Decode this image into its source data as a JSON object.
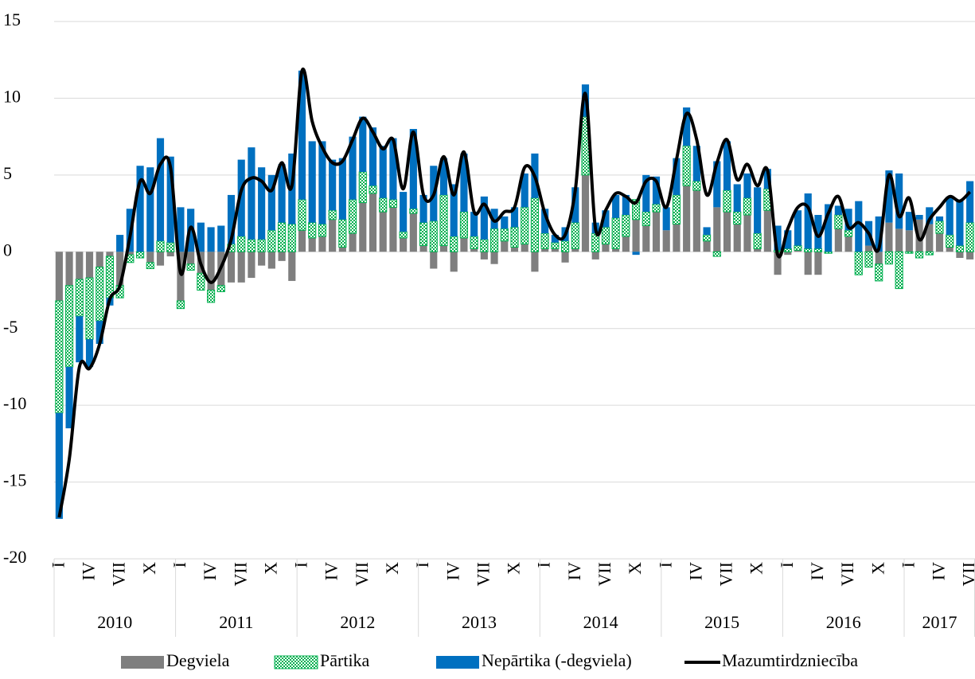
{
  "chart_data": {
    "type": "stacked_bar_line",
    "categories": [
      "I",
      null,
      null,
      "IV",
      null,
      null,
      "VII",
      null,
      null,
      "X",
      null,
      null,
      "I",
      null,
      null,
      "IV",
      null,
      null,
      "VII",
      null,
      null,
      "X",
      null,
      null,
      "I",
      null,
      null,
      "IV",
      null,
      null,
      "VII",
      null,
      null,
      "X",
      null,
      null,
      "I",
      null,
      null,
      "IV",
      null,
      null,
      "VII",
      null,
      null,
      "X",
      null,
      null,
      "I",
      null,
      null,
      "IV",
      null,
      null,
      "VII",
      null,
      null,
      "X",
      null,
      null,
      "I",
      null,
      null,
      "IV",
      null,
      null,
      "VII",
      null,
      null,
      "X",
      null,
      null,
      "I",
      null,
      null,
      "IV",
      null,
      null,
      "VII",
      null,
      null,
      "X",
      null,
      null,
      "I",
      null,
      null,
      "IV",
      null,
      null,
      "VII"
    ],
    "years": [
      "2010",
      "2011",
      "2012",
      "2013",
      "2014",
      "2015",
      "2016",
      "2017"
    ],
    "series": [
      {
        "name": "Degviela",
        "color": "#7f7f7f",
        "kind": "bar",
        "values": [
          -3.2,
          -2.2,
          -1.8,
          -1.7,
          -1,
          -0.3,
          -2.2,
          -0.2,
          0,
          -0.7,
          -0.9,
          -0.3,
          -3.2,
          -0.8,
          -1.4,
          -2.5,
          -2.2,
          -2,
          -2,
          -1.7,
          -0.9,
          -1.1,
          -0.6,
          -1.9,
          1.4,
          0.9,
          1,
          2.1,
          0.3,
          1.2,
          3.2,
          3.8,
          2.6,
          2.9,
          0.9,
          2.5,
          0.4,
          -1.1,
          0.4,
          -1.3,
          0.9,
          0.2,
          -0.5,
          -0.8,
          0.7,
          0.3,
          0.5,
          -1.3,
          0.2,
          0.2,
          -0.7,
          0.2,
          5,
          -0.5,
          0.5,
          0.2,
          1,
          2.1,
          1.7,
          2.6,
          1.4,
          1.8,
          4.3,
          4,
          0.7,
          2.9,
          2.6,
          1.8,
          2.4,
          0.2,
          2.7,
          -1.5,
          -0.2,
          0.1,
          -1.5,
          -1.5,
          0,
          1.5,
          1,
          0,
          0.4,
          -0.8,
          1.9,
          1.5,
          1.4,
          2.1,
          1.8,
          1.2,
          0.3,
          -0.4,
          -0.5
        ]
      },
      {
        "name": "Pārtika",
        "color": "#00b050",
        "kind": "bar",
        "pattern": "dots",
        "values": [
          -7.3,
          -5.3,
          -2.4,
          -4,
          -3.5,
          -2.7,
          -0.8,
          -0.5,
          -0.4,
          -0.4,
          0.7,
          0.6,
          -0.5,
          -0.4,
          -1.1,
          -0.8,
          -0.4,
          0.5,
          1,
          0.8,
          0.8,
          1.4,
          1.9,
          1.8,
          2,
          1,
          0.8,
          0.6,
          1.8,
          2.2,
          2,
          0.5,
          0.9,
          0.5,
          0.4,
          0.3,
          1.5,
          2,
          3.3,
          1,
          1.7,
          0.8,
          0.8,
          1.5,
          0.8,
          1.3,
          2.4,
          3.5,
          1,
          0.4,
          0.7,
          1.7,
          3.8,
          1.2,
          1.1,
          2,
          1.4,
          1.3,
          0.9,
          0.5,
          0,
          1.9,
          2.6,
          0.6,
          0.4,
          -0.3,
          1.4,
          0.8,
          1.1,
          1,
          1.4,
          0.1,
          0.2,
          0.3,
          0.2,
          0.2,
          -0.1,
          0.9,
          0.4,
          -1.5,
          -1,
          -1.1,
          -0.8,
          -2.4,
          -0.1,
          -0.4,
          -0.2,
          0.8,
          0.8,
          0.4,
          1.9
        ]
      },
      {
        "name": "Nepārtika (-degviela)",
        "color": "#0070c0",
        "kind": "bar",
        "values": [
          -6.9,
          -4,
          -3,
          -1.8,
          -1.5,
          -0.5,
          1.1,
          2.8,
          5.6,
          5.5,
          6.7,
          5.6,
          2.9,
          2.8,
          1.9,
          1.6,
          1.7,
          3.2,
          5,
          6,
          4.7,
          3.6,
          3.8,
          4.6,
          8.4,
          5.3,
          5.4,
          3.3,
          4,
          4.1,
          3.6,
          3.8,
          3.4,
          4,
          2.6,
          5.2,
          1.8,
          3.6,
          2.4,
          3.4,
          3.8,
          1.6,
          2.8,
          1.3,
          0.8,
          1.3,
          2.2,
          2.9,
          1.6,
          0.5,
          0.9,
          2.3,
          2.1,
          0.7,
          1.1,
          1.5,
          1.3,
          -0.2,
          2.4,
          1.8,
          1.5,
          2.4,
          2.5,
          2.3,
          0.5,
          3,
          3.2,
          1.8,
          1.6,
          3,
          1.3,
          1.6,
          1.2,
          2.3,
          3.6,
          2.2,
          3.1,
          0.6,
          1.4,
          3.3,
          1.6,
          2.3,
          3.4,
          3.6,
          1.2,
          0.3,
          1.1,
          0.3,
          2.5,
          3,
          2.7
        ]
      },
      {
        "name": "Mazumtirdzniecība",
        "color": "#000000",
        "kind": "line",
        "values": [
          -17.3,
          -13.5,
          -7.5,
          -7.6,
          -6,
          -3.1,
          -2.2,
          1,
          4.6,
          3.8,
          5.7,
          5.5,
          -1.4,
          1.6,
          -0.8,
          -2,
          -1,
          0.8,
          4,
          4.8,
          4.6,
          4,
          5.8,
          4.3,
          11.8,
          8.5,
          6.8,
          5.8,
          5.9,
          7.3,
          8.7,
          7.8,
          6.7,
          7.3,
          4.1,
          7.8,
          3.7,
          3.7,
          6.2,
          3.7,
          6.5,
          2.6,
          3.1,
          2,
          2.6,
          2.9,
          5.5,
          4.9,
          2.5,
          1.1,
          1.1,
          4,
          10.3,
          1.5,
          2.7,
          3.8,
          3.6,
          3.2,
          4.6,
          4.6,
          2.9,
          6,
          9,
          7.3,
          3.7,
          5.8,
          7.3,
          4.7,
          5.7,
          4.3,
          5.3,
          -0.2,
          1.5,
          2.9,
          2.9,
          1,
          2.5,
          3.6,
          1.6,
          1.9,
          1.2,
          0.2,
          5,
          2.3,
          3.5,
          0.8,
          2.1,
          2.9,
          3.6,
          3.3,
          3.9
        ]
      }
    ],
    "ylim": [
      -20,
      15
    ],
    "yticks": [
      -20,
      -15,
      -10,
      -5,
      0,
      5,
      10,
      15
    ],
    "grid": true,
    "legend": "bottom"
  }
}
